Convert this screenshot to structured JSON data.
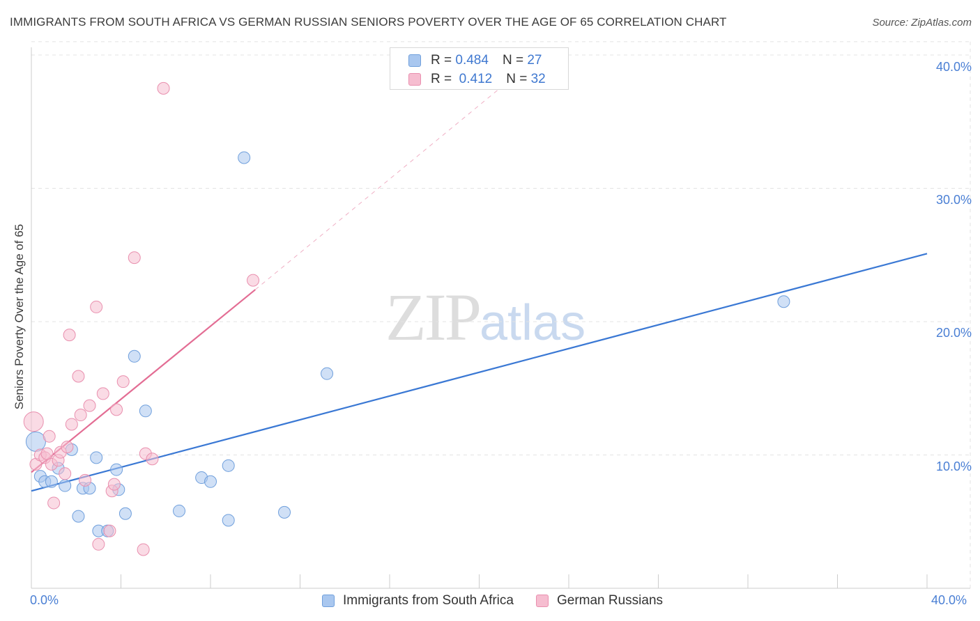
{
  "title": "IMMIGRANTS FROM SOUTH AFRICA VS GERMAN RUSSIAN SENIORS POVERTY OVER THE AGE OF 65 CORRELATION CHART",
  "source": "Source: ZipAtlas.com",
  "watermark": {
    "zip": "ZIP",
    "atlas": "atlas"
  },
  "legend": {
    "rows": [
      {
        "r_label": "R =",
        "r_value": "0.484",
        "n_label": "N =",
        "n_value": "27"
      },
      {
        "r_label": "R =",
        "r_value": "0.412",
        "n_label": "N =",
        "n_value": "32"
      }
    ]
  },
  "colors": {
    "blue_fill": "#a9c7ef",
    "blue_stroke": "#6f9fdc",
    "blue_line": "#3a78d4",
    "pink_fill": "#f6bdd0",
    "pink_stroke": "#e98fae",
    "pink_line": "#e36d94",
    "grid": "#e3e3e3",
    "tick_text": "#4a7fd4"
  },
  "chart_data": {
    "type": "scatter",
    "title": "IMMIGRANTS FROM SOUTH AFRICA VS GERMAN RUSSIAN SENIORS POVERTY OVER THE AGE OF 65 CORRELATION CHART",
    "xlabel": "",
    "ylabel": "Seniors Poverty Over the Age of 65",
    "xlim": [
      0,
      40
    ],
    "ylim": [
      0,
      41
    ],
    "x_tick_labels": [
      "0.0%",
      "40.0%"
    ],
    "y_ticks": [
      10,
      20,
      30,
      40
    ],
    "y_tick_labels": [
      "10.0%",
      "20.0%",
      "30.0%",
      "40.0%"
    ],
    "grid": true,
    "series": [
      {
        "name": "Immigrants from South Africa",
        "color": "blue",
        "r": 0.484,
        "n": 27,
        "points": [
          [
            0.2,
            11.0
          ],
          [
            0.4,
            8.4
          ],
          [
            0.6,
            8.0
          ],
          [
            0.9,
            8.0
          ],
          [
            1.2,
            9.0
          ],
          [
            1.5,
            7.7
          ],
          [
            1.8,
            10.4
          ],
          [
            2.1,
            5.4
          ],
          [
            2.3,
            7.5
          ],
          [
            2.6,
            7.5
          ],
          [
            2.9,
            9.8
          ],
          [
            3.0,
            4.3
          ],
          [
            3.4,
            4.3
          ],
          [
            3.8,
            8.9
          ],
          [
            3.9,
            7.4
          ],
          [
            4.2,
            5.6
          ],
          [
            4.6,
            17.4
          ],
          [
            5.1,
            13.3
          ],
          [
            6.6,
            5.8
          ],
          [
            7.6,
            8.3
          ],
          [
            8.0,
            8.0
          ],
          [
            8.8,
            9.2
          ],
          [
            8.8,
            5.1
          ],
          [
            9.5,
            32.3
          ],
          [
            11.3,
            5.7
          ],
          [
            13.2,
            16.1
          ],
          [
            33.6,
            21.5
          ]
        ],
        "trend": {
          "x": [
            0,
            40
          ],
          "y": [
            7.3,
            25.1
          ]
        }
      },
      {
        "name": "German Russians",
        "color": "pink",
        "r": 0.412,
        "n": 32,
        "points": [
          [
            0.1,
            12.5
          ],
          [
            0.2,
            9.3
          ],
          [
            0.4,
            10.0
          ],
          [
            0.6,
            9.8
          ],
          [
            0.7,
            10.1
          ],
          [
            0.8,
            11.4
          ],
          [
            0.9,
            9.3
          ],
          [
            1.0,
            6.4
          ],
          [
            1.2,
            9.6
          ],
          [
            1.3,
            10.2
          ],
          [
            1.5,
            8.6
          ],
          [
            1.6,
            10.6
          ],
          [
            1.7,
            19.0
          ],
          [
            1.8,
            12.3
          ],
          [
            2.1,
            15.9
          ],
          [
            2.2,
            13.0
          ],
          [
            2.4,
            8.1
          ],
          [
            2.6,
            13.7
          ],
          [
            2.9,
            21.1
          ],
          [
            3.0,
            3.3
          ],
          [
            3.2,
            14.6
          ],
          [
            3.5,
            4.3
          ],
          [
            3.6,
            7.3
          ],
          [
            3.7,
            7.8
          ],
          [
            3.8,
            13.4
          ],
          [
            4.1,
            15.5
          ],
          [
            4.6,
            24.8
          ],
          [
            5.0,
            2.9
          ],
          [
            5.1,
            10.1
          ],
          [
            5.4,
            9.7
          ],
          [
            5.9,
            37.5
          ],
          [
            9.9,
            23.1
          ]
        ],
        "trend": {
          "x": [
            0,
            10.0
          ],
          "y": [
            8.7,
            22.4
          ]
        },
        "trend_extension": {
          "x": [
            10.0,
            21.5
          ],
          "y": [
            22.4,
            38.3
          ]
        }
      }
    ]
  },
  "bottom_legend": {
    "items": [
      {
        "label": "Immigrants from South Africa"
      },
      {
        "label": "German Russians"
      }
    ]
  }
}
